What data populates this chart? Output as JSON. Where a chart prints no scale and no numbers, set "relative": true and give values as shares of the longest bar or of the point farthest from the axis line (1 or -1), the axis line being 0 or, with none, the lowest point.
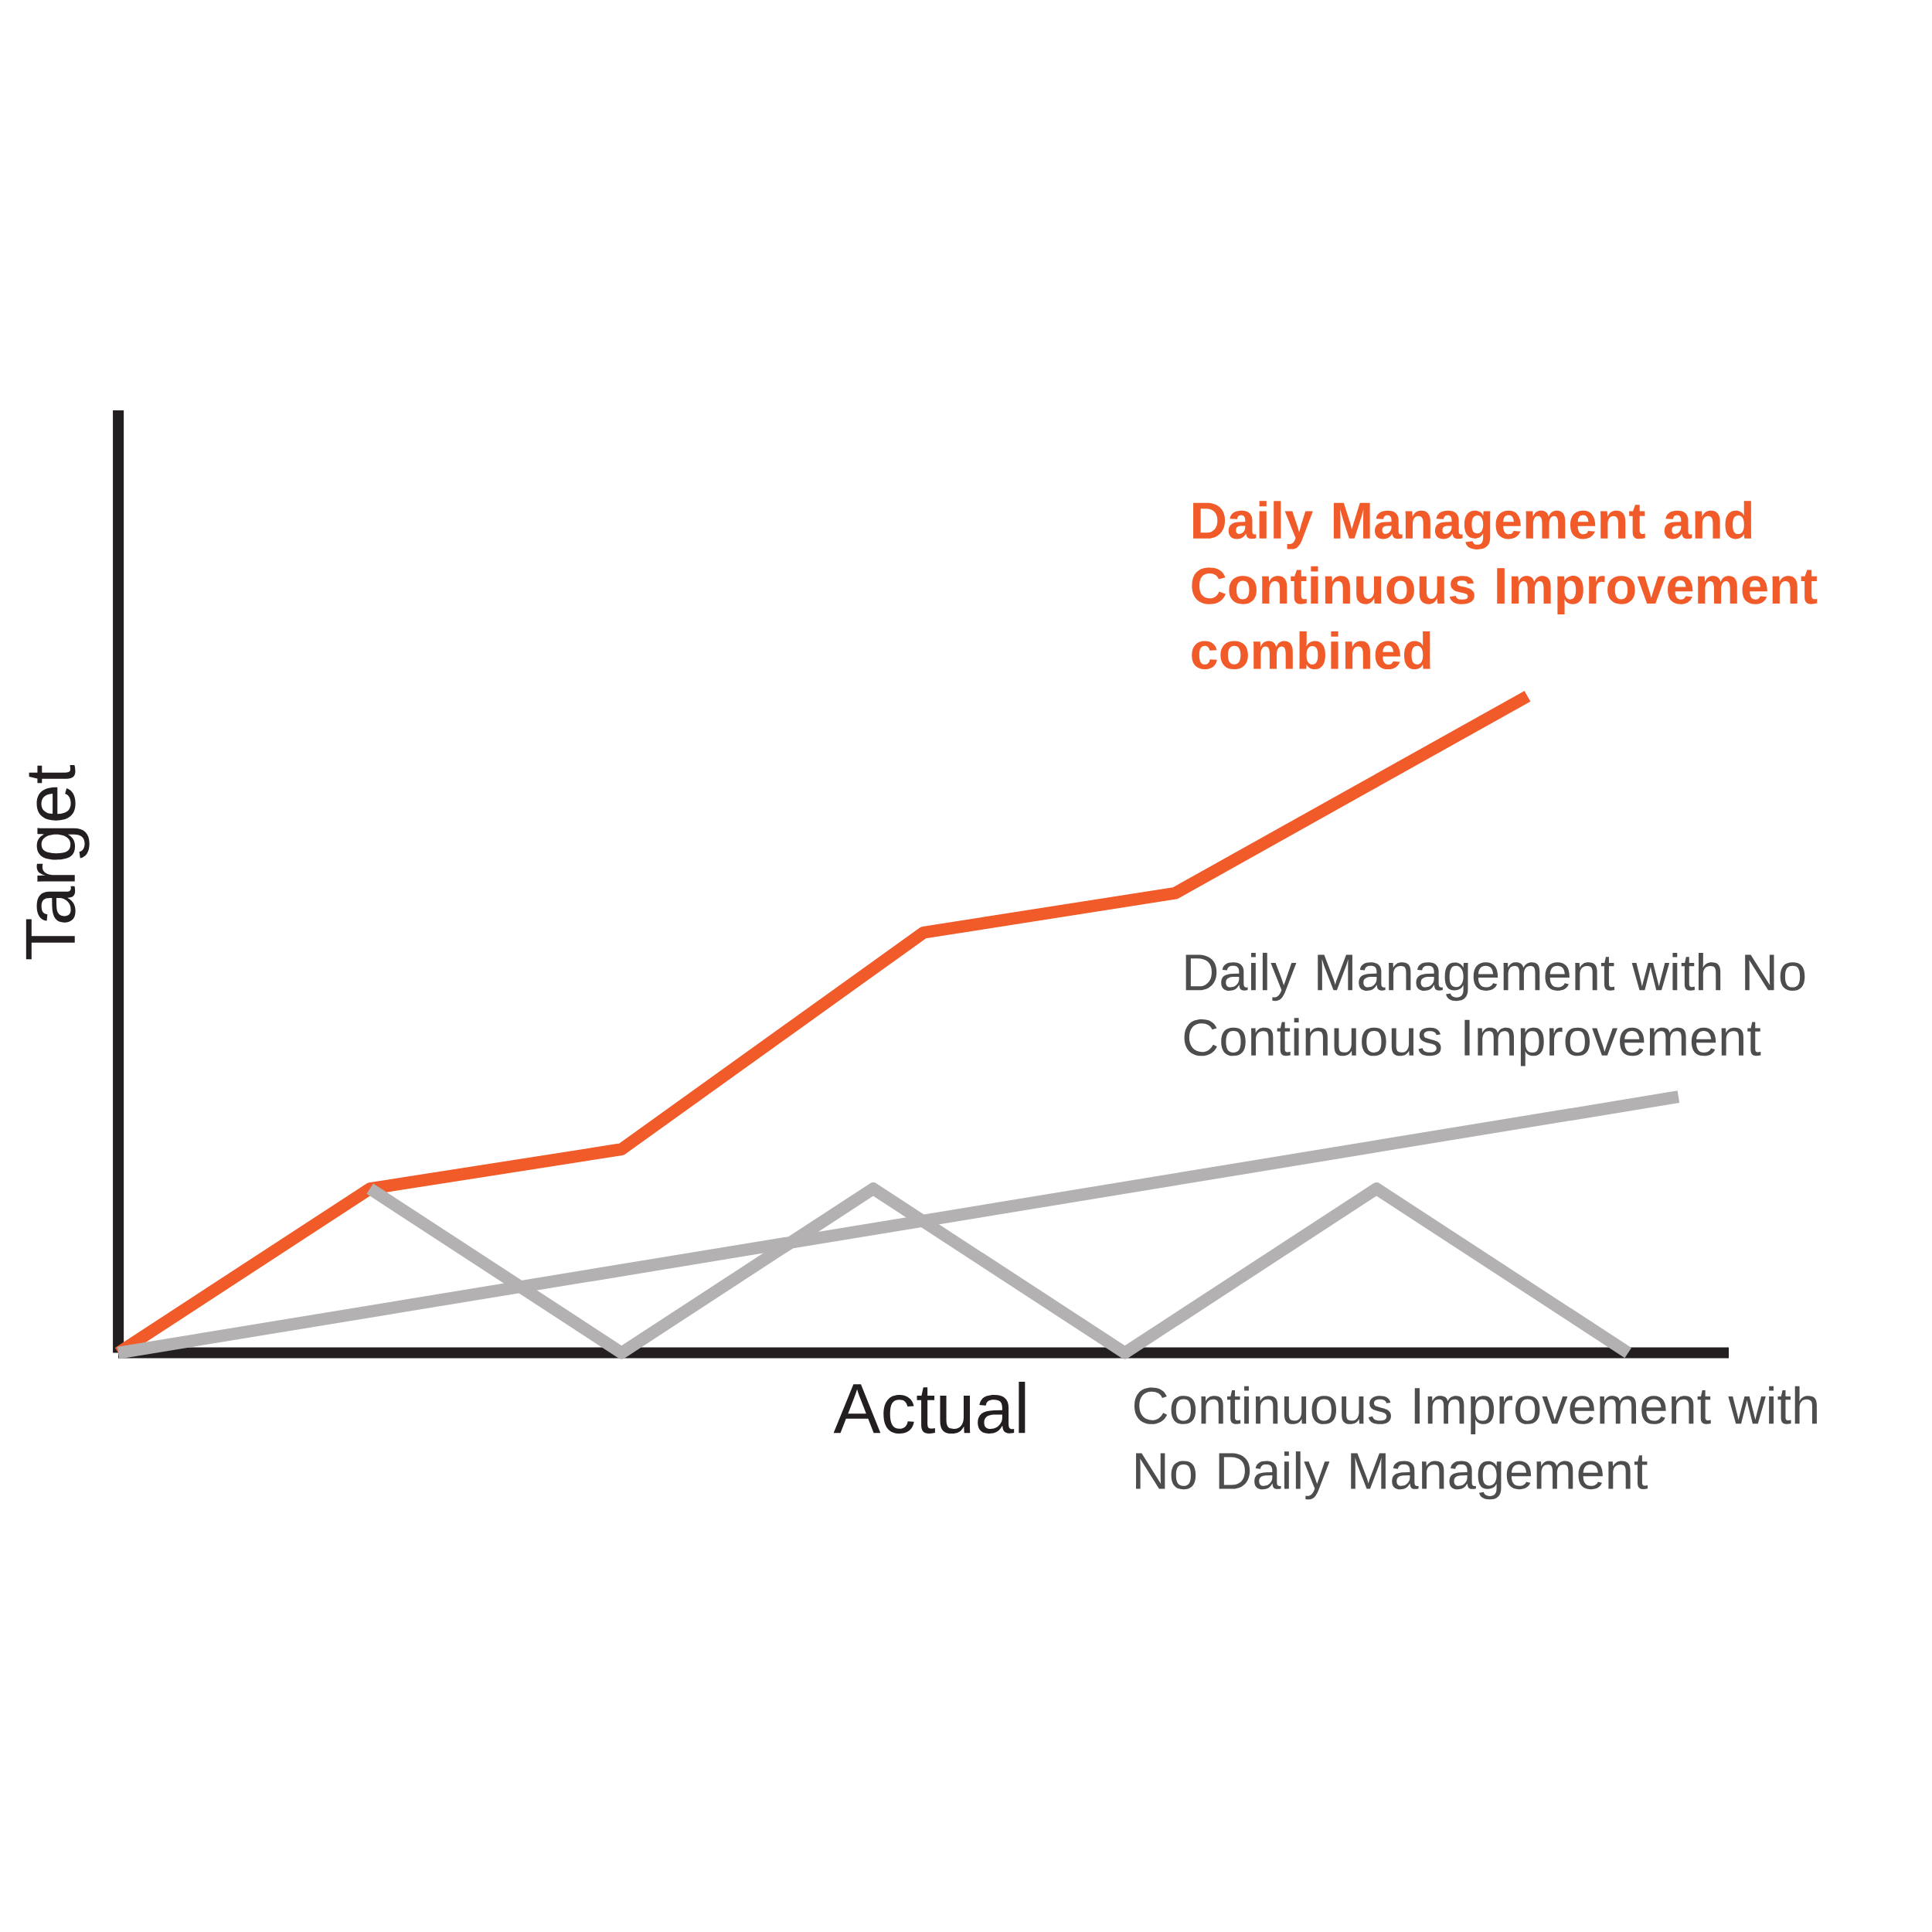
{
  "chart_data": {
    "type": "line",
    "relative": true,
    "xlabel": "Actual",
    "ylabel": "Target",
    "categories": [
      null,
      null,
      null,
      null,
      null,
      null,
      null,
      null,
      null,
      null,
      null,
      null,
      null,
      null,
      null,
      null,
      null,
      null,
      null,
      null,
      null,
      null,
      null,
      null,
      null,
      null,
      null,
      null,
      null,
      null,
      null,
      null,
      null
    ],
    "series": [
      {
        "name": "**Daily Management and Continuous Improvement combined**",
        "color": "#f15a29",
        "values": [
          0,
          null,
          null,
          null,
          null,
          0.25,
          null,
          null,
          null,
          null,
          0.31,
          null,
          null,
          null,
          null,
          null,
          0.64,
          null,
          null,
          null,
          null,
          0.7,
          null,
          null,
          null,
          null,
          null,
          null,
          1,
          null,
          null,
          null,
          null
        ]
      },
      {
        "name": "Daily Management with No Continuous Improvement",
        "color": "#b3b1b2",
        "values": [
          0,
          null,
          null,
          null,
          null,
          null,
          null,
          null,
          null,
          null,
          null,
          null,
          null,
          null,
          null,
          null,
          null,
          null,
          null,
          null,
          null,
          null,
          null,
          null,
          null,
          null,
          null,
          null,
          null,
          null,
          null,
          0.39,
          null
        ]
      },
      {
        "name": "Continuous Improvement with No Daily Management",
        "color": "#b3b1b2",
        "values": [
          null,
          null,
          null,
          null,
          null,
          0.25,
          null,
          null,
          null,
          null,
          0,
          null,
          null,
          null,
          null,
          0.25,
          null,
          null,
          null,
          null,
          0,
          null,
          null,
          null,
          null,
          0.25,
          null,
          null,
          null,
          null,
          0,
          null,
          null
        ]
      }
    ]
  }
}
